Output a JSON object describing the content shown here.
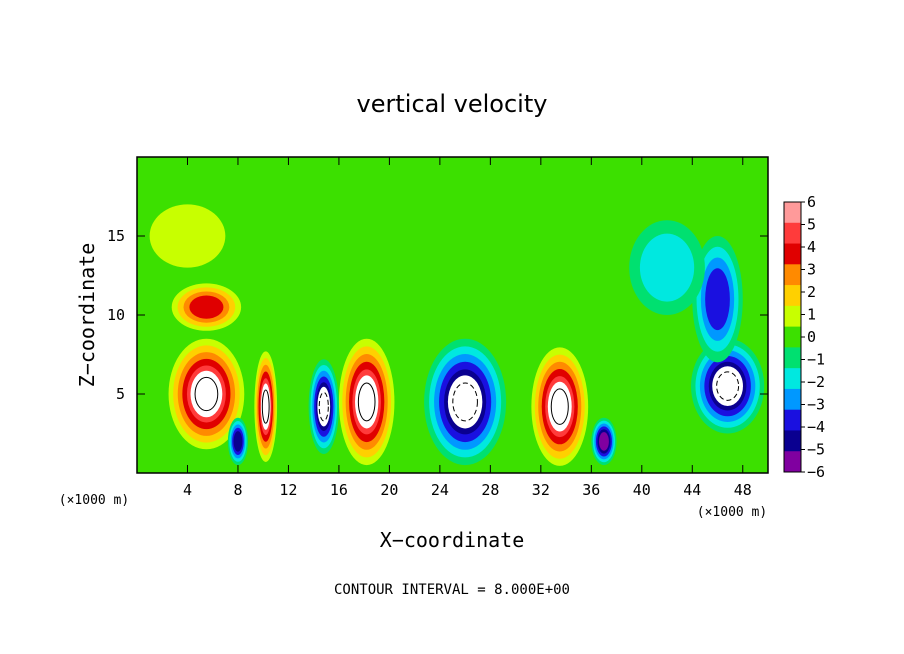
{
  "chart_data": {
    "type": "heatmap",
    "title": "vertical velocity",
    "xlabel": "X−coordinate",
    "ylabel": "Z−coordinate",
    "x_unit": "(×1000 m)",
    "y_unit": "(×1000 m)",
    "footnote": "CONTOUR INTERVAL = 8.000E+00",
    "xlim": [
      0,
      50
    ],
    "ylim": [
      0,
      20
    ],
    "x_ticks": [
      4,
      8,
      12,
      16,
      20,
      24,
      28,
      32,
      36,
      40,
      44,
      48
    ],
    "y_ticks": [
      5,
      10,
      15
    ],
    "colorbar": {
      "range": [
        -6,
        6
      ],
      "ticks": [
        "6",
        "5",
        "4",
        "3",
        "2",
        "1",
        "0",
        "−1",
        "−2",
        "−3",
        "−4",
        "−5",
        "−6"
      ],
      "colors": [
        "#ff9a9a",
        "#ff3b3b",
        "#e00000",
        "#ff8a00",
        "#ffd000",
        "#c8ff00",
        "#3ce000",
        "#00e070",
        "#00e8e0",
        "#0098ff",
        "#1a10e0",
        "#0a0090",
        "#8000a0"
      ],
      "saturated_color": "#ffffff"
    },
    "cells": [
      {
        "x": 5.5,
        "z": 5.0,
        "w": 6.0,
        "h": 7.0,
        "value": 16
      },
      {
        "x": 5.5,
        "z": 10.5,
        "w": 5.5,
        "h": 3.0,
        "value": 3.5
      },
      {
        "x": 8.0,
        "z": 2.0,
        "w": 1.6,
        "h": 3.0,
        "value": -5
      },
      {
        "x": 10.2,
        "z": 4.2,
        "w": 1.8,
        "h": 7.0,
        "value": 10
      },
      {
        "x": 14.8,
        "z": 4.2,
        "w": 2.4,
        "h": 6.0,
        "value": -8
      },
      {
        "x": 18.2,
        "z": 4.5,
        "w": 4.4,
        "h": 8.0,
        "value": 16
      },
      {
        "x": 26.0,
        "z": 4.5,
        "w": 6.5,
        "h": 8.0,
        "value": -14
      },
      {
        "x": 33.5,
        "z": 4.2,
        "w": 4.5,
        "h": 7.5,
        "value": 12
      },
      {
        "x": 37.0,
        "z": 2.0,
        "w": 2.0,
        "h": 3.0,
        "value": -6
      },
      {
        "x": 46.8,
        "z": 5.5,
        "w": 5.8,
        "h": 6.0,
        "value": -10
      },
      {
        "x": 46.0,
        "z": 11.0,
        "w": 4.0,
        "h": 8.0,
        "value": -4
      },
      {
        "x": 42.0,
        "z": 13.0,
        "w": 6.0,
        "h": 6.0,
        "value": -2
      },
      {
        "x": 4.0,
        "z": 15.0,
        "w": 6.0,
        "h": 4.0,
        "value": 1
      }
    ]
  }
}
